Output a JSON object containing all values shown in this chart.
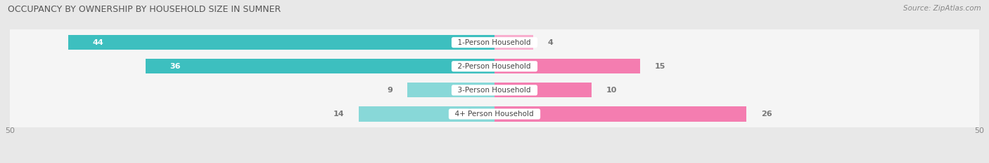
{
  "title": "OCCUPANCY BY OWNERSHIP BY HOUSEHOLD SIZE IN SUMNER",
  "source": "Source: ZipAtlas.com",
  "categories": [
    "1-Person Household",
    "2-Person Household",
    "3-Person Household",
    "4+ Person Household"
  ],
  "owner_values": [
    44,
    36,
    9,
    14
  ],
  "renter_values": [
    4,
    15,
    10,
    26
  ],
  "owner_color": "#3DBFBF",
  "renter_color": "#F47DB0",
  "owner_color_light": "#88D8D8",
  "renter_color_light": "#F8AECE",
  "xlim_left": -50,
  "xlim_right": 50,
  "background_color": "#e8e8e8",
  "row_bg_color": "#f5f5f5",
  "title_color": "#555555",
  "source_color": "#888888",
  "label_white": "#ffffff",
  "label_dark": "#777777",
  "center_label_color": "#444444"
}
